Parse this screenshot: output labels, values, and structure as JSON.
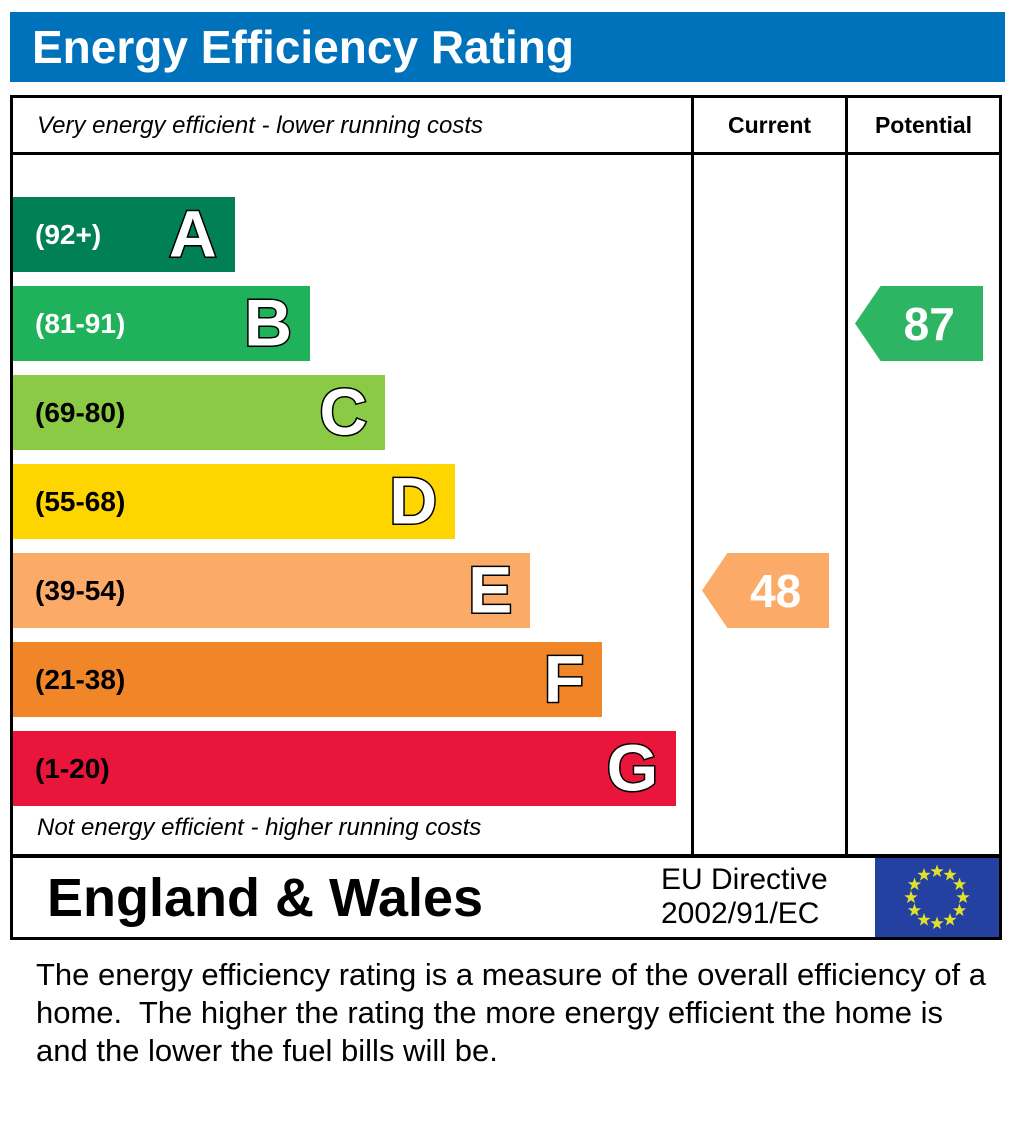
{
  "title": "Energy Efficiency Rating",
  "columns": {
    "current": "Current",
    "potential": "Potential"
  },
  "captions": {
    "top": "Very energy efficient - lower running costs",
    "bottom": "Not energy efficient - higher running costs"
  },
  "bands": [
    {
      "letter": "A",
      "range": "(92+)",
      "color": "#008054",
      "range_label_color": "#ffffff",
      "width_pct": 32.7
    },
    {
      "letter": "B",
      "range": "(81-91)",
      "color": "#1fb25a",
      "range_label_color": "#ffffff",
      "width_pct": 43.8
    },
    {
      "letter": "C",
      "range": "(69-80)",
      "color": "#8bca44",
      "range_label_color": "#000000",
      "width_pct": 54.9
    },
    {
      "letter": "D",
      "range": "(55-68)",
      "color": "#ffd500",
      "range_label_color": "#000000",
      "width_pct": 65.2
    },
    {
      "letter": "E",
      "range": "(39-54)",
      "color": "#fbab67",
      "range_label_color": "#000000",
      "width_pct": 76.3
    },
    {
      "letter": "F",
      "range": "(21-38)",
      "color": "#f08627",
      "range_label_color": "#000000",
      "width_pct": 86.9
    },
    {
      "letter": "G",
      "range": "(1-20)",
      "color": "#e9153b",
      "range_label_color": "#000000",
      "width_pct": 97.8
    }
  ],
  "current": {
    "value": "48",
    "band": "E",
    "row_index": 4,
    "color": "#fbab67"
  },
  "potential": {
    "value": "87",
    "band": "B",
    "row_index": 1,
    "color": "#2eb563"
  },
  "footer": {
    "region": "England & Wales",
    "directive_line1": "EU Directive",
    "directive_line2": "2002/91/EC"
  },
  "description": "The energy efficiency rating is a measure of the overall efficiency of a home.  The higher the rating the more energy efficient the home is and the lower the fuel bills will be.",
  "colors": {
    "header_blue": "#0072bc",
    "flag_blue": "#2440a0",
    "flag_star": "#dfe12b",
    "border_black": "#000000"
  },
  "chart_data": {
    "type": "bar",
    "title": "Energy Efficiency Rating",
    "orientation": "horizontal",
    "categories": [
      "A",
      "B",
      "C",
      "D",
      "E",
      "F",
      "G"
    ],
    "band_ranges": [
      "92+",
      "81-91",
      "69-80",
      "55-68",
      "39-54",
      "21-38",
      "1-20"
    ],
    "band_colors": [
      "#008054",
      "#1fb25a",
      "#8bca44",
      "#ffd500",
      "#fbab67",
      "#f08627",
      "#e9153b"
    ],
    "bar_lengths_pct": [
      32.7,
      43.8,
      54.9,
      65.2,
      76.3,
      86.9,
      97.8
    ],
    "value_scale_note": "bar length increases from A to G; ratings 1-100 map to bands",
    "markers": [
      {
        "name": "Current",
        "value": 48,
        "band": "E",
        "color": "#fbab67"
      },
      {
        "name": "Potential",
        "value": 87,
        "band": "B",
        "color": "#2eb563"
      }
    ],
    "annotations": [
      "Very energy efficient - lower running costs",
      "Not energy efficient - higher running costs"
    ],
    "footer": "England & Wales — EU Directive 2002/91/EC"
  }
}
